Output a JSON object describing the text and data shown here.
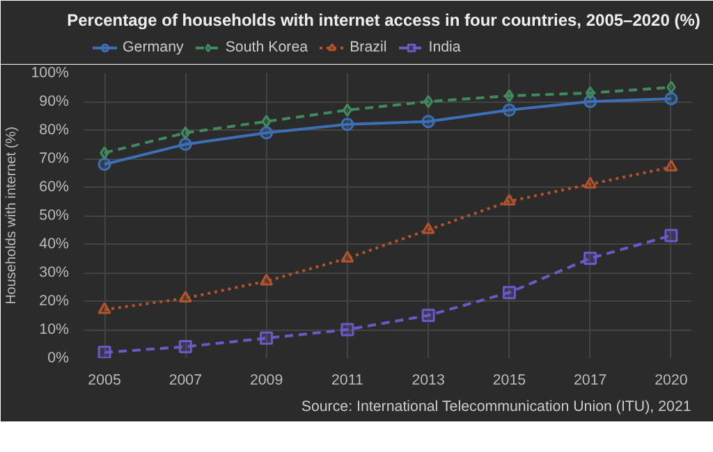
{
  "chart_data": {
    "type": "line",
    "title": "Percentage of households with internet access in four countries, 2005–2020 (%)",
    "ylabel": "Households with internet (%)",
    "annotations": [
      "Source: International Telecommunication Union (ITU), 2021"
    ],
    "categories": [
      "2005",
      "2007",
      "2009",
      "2011",
      "2013",
      "2015",
      "2017",
      "2020"
    ],
    "series": [
      {
        "name": "Germany",
        "color": "#3d6fb6",
        "marker": "circle",
        "line_style": "solid",
        "values": [
          68,
          75,
          79,
          82,
          83,
          87,
          90,
          91
        ]
      },
      {
        "name": "South Korea",
        "color": "#3f8a5e",
        "marker": "diamond",
        "line_style": "dashed",
        "values": [
          72,
          79,
          83,
          87,
          90,
          92,
          93,
          95
        ]
      },
      {
        "name": "Brazil",
        "color": "#b5532c",
        "marker": "triangle",
        "line_style": "dotted",
        "values": [
          17,
          21,
          27,
          35,
          45,
          55,
          61,
          67
        ]
      },
      {
        "name": "India",
        "color": "#6a5ac8",
        "marker": "square",
        "line_style": "dashed",
        "values": [
          2,
          4,
          7,
          10,
          15,
          23,
          35,
          43
        ]
      }
    ],
    "ylim": [
      0,
      100
    ],
    "yticks": [
      {
        "value": 0,
        "label": "0%"
      },
      {
        "value": 10,
        "label": "10%"
      },
      {
        "value": 20,
        "label": "20%"
      },
      {
        "value": 30,
        "label": "30%"
      },
      {
        "value": 40,
        "label": "40%"
      },
      {
        "value": 50,
        "label": "50%"
      },
      {
        "value": 60,
        "label": "60%"
      },
      {
        "value": 70,
        "label": "70%"
      },
      {
        "value": 80,
        "label": "80%"
      },
      {
        "value": 90,
        "label": "90%"
      },
      {
        "value": 100,
        "label": "100%"
      }
    ],
    "grid": true,
    "legend": "top left"
  }
}
